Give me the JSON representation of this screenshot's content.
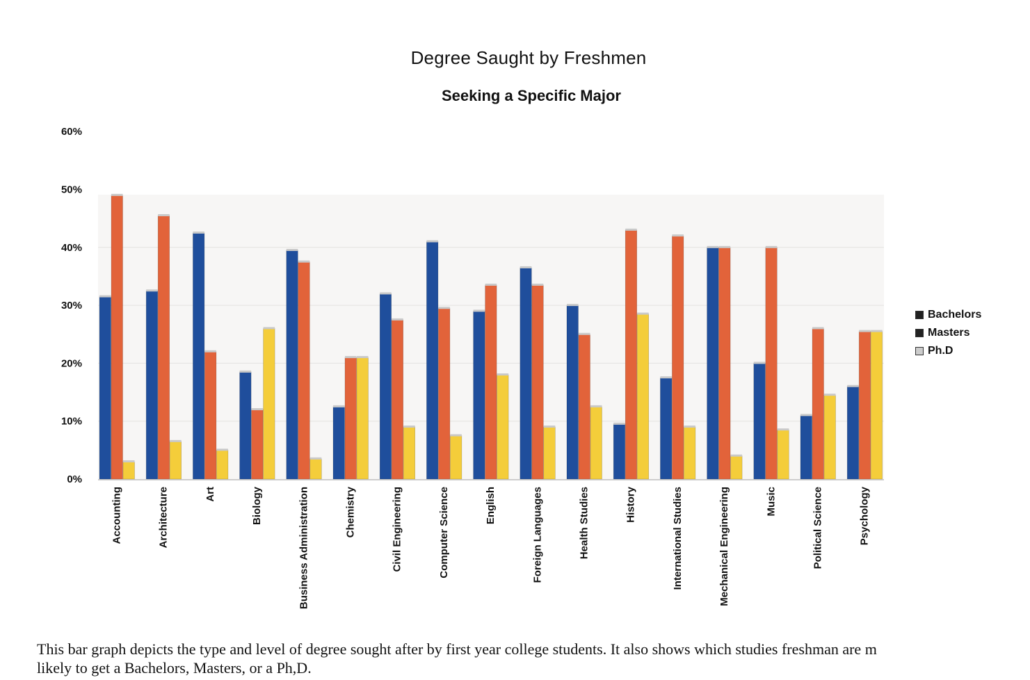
{
  "chart_data": {
    "type": "bar",
    "title": "Degree Saught by Freshmen",
    "subtitle": "Seeking a Specific Major",
    "xlabel": "",
    "ylabel": "",
    "ylim": [
      0,
      60
    ],
    "y_ticks": [
      "0%",
      "10%",
      "20%",
      "30%",
      "40%",
      "50%",
      "60%"
    ],
    "y_tick_values": [
      0,
      10,
      20,
      30,
      40,
      50,
      60
    ],
    "grid": true,
    "legend_position": "right",
    "categories": [
      "Accounting",
      "Architecture",
      "Art",
      "Biology",
      "Business Administration",
      "Chemistry",
      "Civil Engineering",
      "Computer Science",
      "English",
      "Foreign Languages",
      "Health Studies",
      "History",
      "International Studies",
      "Mechanical Engineering",
      "Music",
      "Political Science",
      "Psychology"
    ],
    "series": [
      {
        "name": "Bachelors",
        "color": "#1f4e9c",
        "values": [
          31.5,
          32.5,
          42.5,
          18.5,
          39.5,
          12.5,
          32,
          41,
          29,
          36.5,
          30,
          9.5,
          17.5,
          40,
          20,
          11,
          16
        ]
      },
      {
        "name": "Masters",
        "color": "#e2633a",
        "values": [
          49,
          45.5,
          22,
          12,
          37.5,
          21,
          27.5,
          29.5,
          33.5,
          33.5,
          25,
          43,
          42,
          40,
          40,
          26,
          25.5
        ]
      },
      {
        "name": "Ph.D",
        "color": "#f4cd3a",
        "values": [
          3,
          6.5,
          5,
          26,
          3.5,
          21,
          9,
          7.5,
          18,
          9,
          12.5,
          28.5,
          9,
          4,
          8.5,
          14.5,
          25.5
        ]
      }
    ]
  },
  "caption": {
    "line1": "This bar graph depicts the type and level of degree sought after by first year college students.  It also shows which studies freshman are m",
    "line2": "likely to get a Bachelors, Masters, or a Ph,D."
  }
}
